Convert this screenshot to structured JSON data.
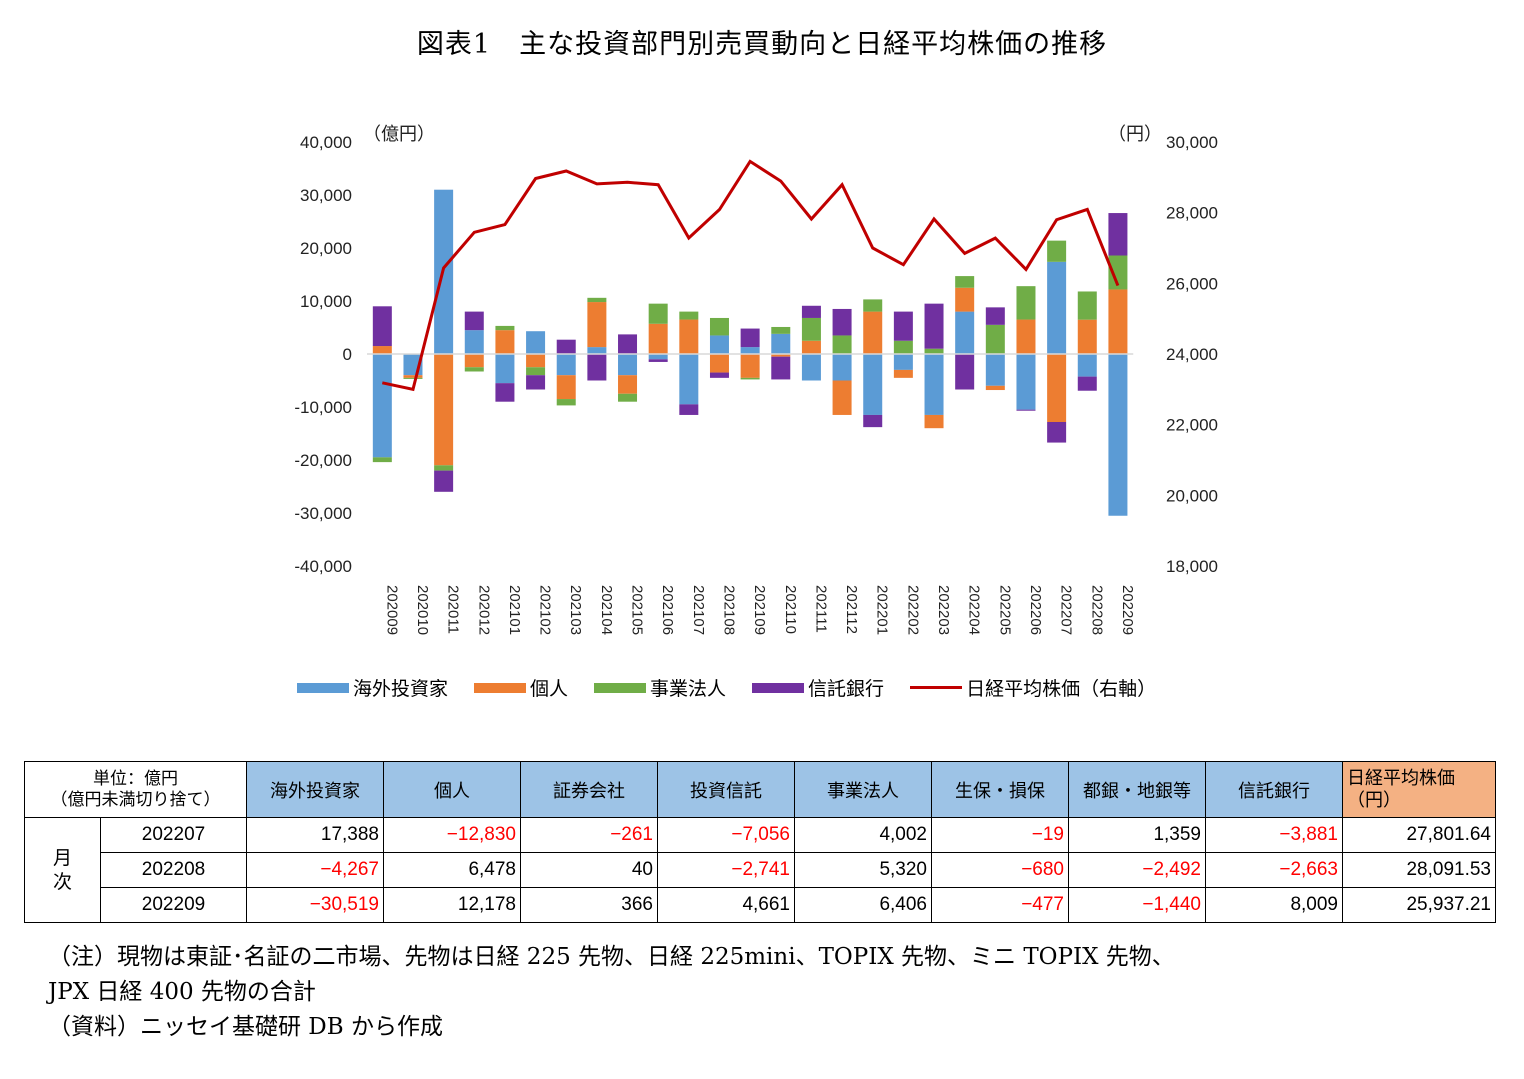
{
  "title": "図表1　主な投資部門別売買動向と日経平均株価の推移",
  "chart_data": {
    "type": "bar",
    "stacked": true,
    "left_unit": "（億円）",
    "right_unit": "（円）",
    "ylim": [
      -40000,
      40000
    ],
    "y2lim": [
      18000,
      30000
    ],
    "y_ticks": [
      "40,000",
      "30,000",
      "20,000",
      "10,000",
      "0",
      "-10,000",
      "-20,000",
      "-30,000",
      "-40,000"
    ],
    "y2_ticks": [
      "30,000",
      "28,000",
      "26,000",
      "24,000",
      "22,000",
      "20,000",
      "18,000"
    ],
    "categories": [
      "202009",
      "202010",
      "202011",
      "202012",
      "202101",
      "202102",
      "202103",
      "202104",
      "202105",
      "202106",
      "202107",
      "202108",
      "202109",
      "202110",
      "202111",
      "202112",
      "202201",
      "202202",
      "202203",
      "202204",
      "202205",
      "202206",
      "202207",
      "202208",
      "202209"
    ],
    "series": [
      {
        "name": "海外投資家",
        "color": "#5b9bd5",
        "values": [
          -19500,
          -4000,
          31000,
          4500,
          -5500,
          4300,
          -4000,
          1300,
          -4000,
          -1000,
          -9500,
          3500,
          1300,
          3800,
          -5000,
          -5000,
          -11500,
          -3000,
          -11500,
          8000,
          -6000,
          -10500,
          17388,
          -4267,
          -30519
        ]
      },
      {
        "name": "個人",
        "color": "#ed7d31",
        "values": [
          1500,
          -500,
          -21000,
          -2500,
          4500,
          -2500,
          -4500,
          8500,
          -3500,
          5700,
          6500,
          -3500,
          -4500,
          -500,
          2500,
          -6500,
          8000,
          -1500,
          -2500,
          4500,
          -800,
          6500,
          -12830,
          6478,
          12178
        ]
      },
      {
        "name": "事業法人",
        "color": "#70ad47",
        "values": [
          -900,
          -200,
          -1000,
          -800,
          800,
          -1500,
          -1200,
          800,
          -1500,
          3800,
          1500,
          3300,
          -300,
          1300,
          4300,
          3500,
          2300,
          2500,
          1000,
          2200,
          5500,
          6300,
          4002,
          5320,
          6406
        ]
      },
      {
        "name": "信託銀行",
        "color": "#7030a0",
        "values": [
          7500,
          0,
          -4000,
          3500,
          -3500,
          -2700,
          2700,
          -5000,
          3700,
          -500,
          -2000,
          -1000,
          3500,
          -4300,
          2300,
          5000,
          -2300,
          5500,
          8500,
          -6700,
          3300,
          -200,
          -3881,
          -2663,
          8009
        ]
      },
      {
        "name": "日経平均株価（右軸）",
        "color": "#c00000",
        "axis": "right",
        "type": "line",
        "values": [
          23185,
          23000,
          26433,
          27444,
          27663,
          28966,
          29179,
          28813,
          28860,
          28791,
          27283,
          28089,
          29452,
          28892,
          27821,
          28791,
          27001,
          26526,
          27821,
          26847,
          27279,
          26393,
          27801.64,
          28091.53,
          25937.21
        ]
      }
    ]
  },
  "table": {
    "unit_label_1": "単位：億円",
    "unit_label_2": "（億円未満切り捨て）",
    "headers": [
      "海外投資家",
      "個人",
      "証券会社",
      "投資信託",
      "事業法人",
      "生保・損保",
      "都銀・地銀等",
      "信託銀行"
    ],
    "nikkei_header_1": "日経平均株価",
    "nikkei_header_2": "（円）",
    "row_group_label_1": "月",
    "row_group_label_2": "次",
    "rows": [
      {
        "period": "202207",
        "cells": [
          "17,388",
          "−12,830",
          "−261",
          "−7,056",
          "4,002",
          "−19",
          "1,359",
          "−3,881",
          "27,801.64"
        ]
      },
      {
        "period": "202208",
        "cells": [
          "−4,267",
          "6,478",
          "40",
          "−2,741",
          "5,320",
          "−680",
          "−2,492",
          "−2,663",
          "28,091.53"
        ]
      },
      {
        "period": "202209",
        "cells": [
          "−30,519",
          "12,178",
          "366",
          "4,661",
          "6,406",
          "−477",
          "−1,440",
          "8,009",
          "25,937.21"
        ]
      }
    ]
  },
  "notes": {
    "line1": "（注）現物は東証･名証の二市場、先物は日経 225 先物、日経 225mini、TOPIX 先物、ミニ TOPIX 先物、",
    "line2": "JPX 日経 400 先物の合計",
    "line3": "（資料）ニッセイ基礎研 DB から作成"
  }
}
